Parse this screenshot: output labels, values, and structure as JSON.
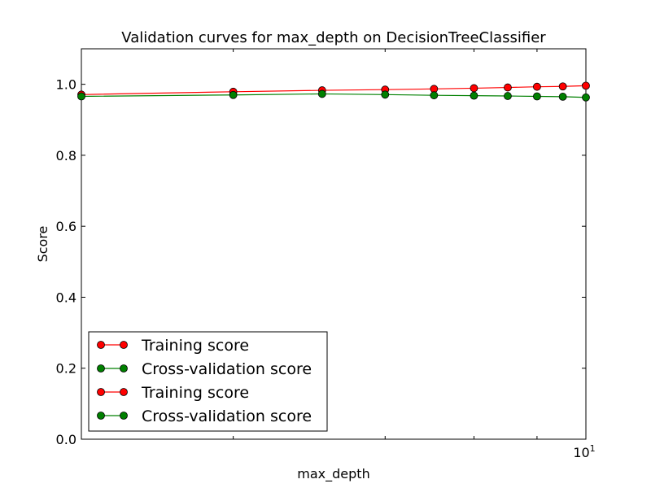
{
  "chart_data": {
    "type": "line",
    "title": "Validation curves for max_depth on DecisionTreeClassifier",
    "xlabel": "max_depth",
    "ylabel": "Score",
    "xscale": "log",
    "x": [
      2,
      4,
      6,
      8,
      10
    ],
    "xlim": [
      1,
      10
    ],
    "ylim": [
      0,
      1.1
    ],
    "yticks": [
      "0.0",
      "0.2",
      "0.4",
      "0.6",
      "0.8",
      "1.0"
    ],
    "xtick_labels": [
      {
        "base": "10",
        "exp": "1"
      }
    ],
    "grid": false,
    "legend_position": "lower-left",
    "series": [
      {
        "name": "Training score",
        "color": "#ff0000",
        "x": [
          1,
          2,
          3,
          4,
          5,
          6,
          7,
          8,
          9,
          10
        ],
        "values": [
          0.971,
          0.979,
          0.983,
          0.985,
          0.987,
          0.989,
          0.991,
          0.993,
          0.994,
          0.996
        ]
      },
      {
        "name": "Cross-validation score",
        "color": "#008000",
        "x": [
          1,
          2,
          3,
          4,
          5,
          6,
          7,
          8,
          9,
          10
        ],
        "values": [
          0.966,
          0.97,
          0.973,
          0.971,
          0.969,
          0.968,
          0.967,
          0.966,
          0.965,
          0.963
        ]
      }
    ],
    "legend_entries": [
      {
        "label": "Training score",
        "color": "#ff0000"
      },
      {
        "label": "Cross-validation score",
        "color": "#008000"
      },
      {
        "label": "Training score",
        "color": "#ff0000"
      },
      {
        "label": "Cross-validation score",
        "color": "#008000"
      }
    ]
  }
}
